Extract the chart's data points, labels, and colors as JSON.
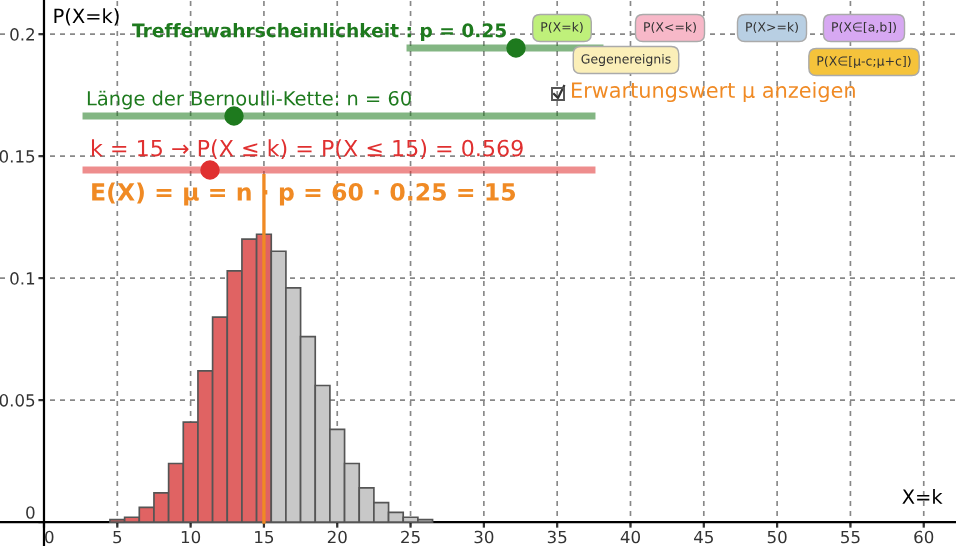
{
  "chart_data": {
    "type": "histogram",
    "xlabel": "X=k",
    "ylabel": "P(X=k)",
    "bins": [
      4.5,
      5.5,
      6.5,
      7.5,
      8.5,
      9.5,
      10.5,
      11.5,
      12.5,
      13.5,
      14.5,
      15.5,
      16.5,
      17.5,
      18.5,
      19.5,
      20.5,
      21.5,
      22.5,
      23.5,
      24.5,
      25.5,
      26.5
    ],
    "values": [
      0.001,
      0.002,
      0.006,
      0.012,
      0.024,
      0.041,
      0.062,
      0.084,
      0.103,
      0.116,
      0.118,
      0.111,
      0.096,
      0.076,
      0.056,
      0.038,
      0.024,
      0.014,
      0.008,
      0.004,
      0.002,
      0.001
    ],
    "colors": [
      "#e06363",
      "#e06363",
      "#e06363",
      "#e06363",
      "#e06363",
      "#e06363",
      "#e06363",
      "#e06363",
      "#e06363",
      "#e06363",
      "#e06363",
      "#c8c8c8",
      "#c8c8c8",
      "#c8c8c8",
      "#c8c8c8",
      "#c8c8c8",
      "#c8c8c8",
      "#c8c8c8",
      "#c8c8c8",
      "#c8c8c8",
      "#c8c8c8",
      "#c8c8c8"
    ],
    "xlim": [
      -3,
      62.2
    ],
    "ylim": [
      -0.0098,
      0.214
    ],
    "xticks": [
      0,
      5,
      10,
      15,
      20,
      25,
      30,
      35,
      40,
      45,
      50,
      55,
      60
    ],
    "yticks": [
      0,
      0.05,
      0.1,
      0.15,
      0.2
    ],
    "grid": true,
    "ref_lines": [
      {
        "axis": "x",
        "value": 15,
        "color": "#f08a24"
      }
    ],
    "annotations": [
      "Trefferwahrscheinlichkeit : p = 0.25",
      "Länge der Bernoulli-Kette: n = 60",
      "k = 15 → P(X ≤ k) = P(X ≤ 15) = 0.569",
      "E(X) = μ = n · p = 60 · 0.25 = 15",
      "Erwartungswert μ anzeigen",
      "P(X=k)",
      "P(X<=k)",
      "P(X>=k)",
      "P(X∈[a,b])",
      "Gegenereignis",
      "P(X∈[μ-c;μ+c])"
    ]
  }
}
